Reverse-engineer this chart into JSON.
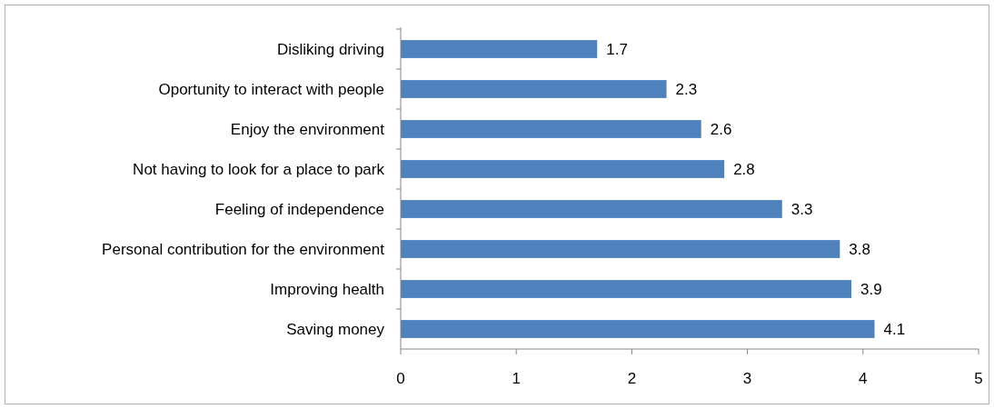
{
  "chart_data": {
    "type": "bar",
    "orientation": "horizontal",
    "categories": [
      "Disliking driving",
      "Oportunity to interact with people",
      "Enjoy the environment",
      "Not having to look for a place to park",
      "Feeling of independence",
      "Personal contribution for the environment",
      "Improving health",
      "Saving money"
    ],
    "values": [
      1.7,
      2.3,
      2.6,
      2.8,
      3.3,
      3.8,
      3.9,
      4.1
    ],
    "color": "#4f81bd",
    "xlim": [
      0,
      5
    ],
    "xticks": [
      0,
      1,
      2,
      3,
      4,
      5
    ],
    "data_labels": true,
    "grid": false
  }
}
